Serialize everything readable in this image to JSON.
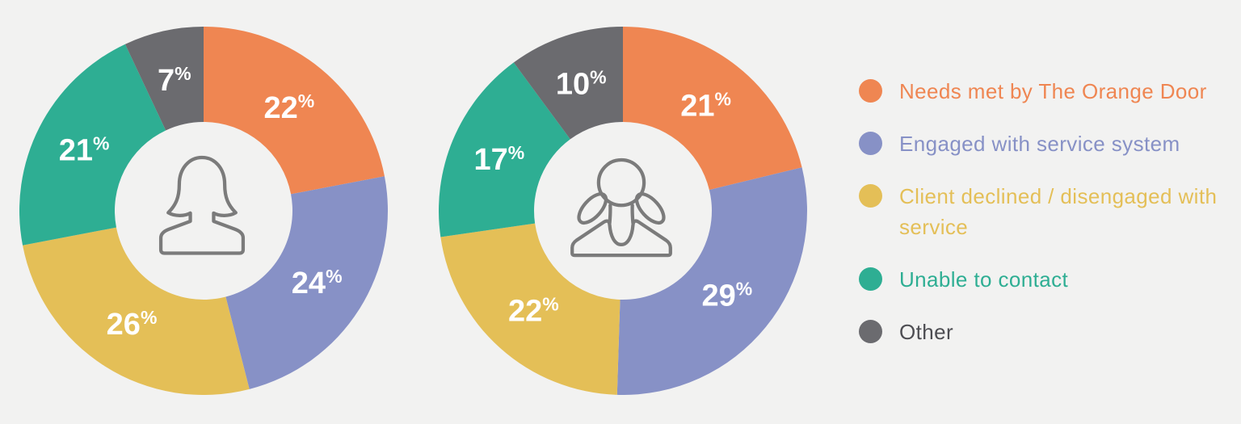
{
  "page": {
    "background_color": "#f2f2f1",
    "value_label_color": "#ffffff",
    "icon_stroke_color": "#7b7b7b"
  },
  "legend": {
    "items": [
      {
        "label": "Needs met by The Orange Door",
        "color": "#ef8652",
        "text_color": "#ef8652",
        "icon": "orange-dot-icon"
      },
      {
        "label": "Engaged with service system",
        "color": "#8791c6",
        "text_color": "#8791c6",
        "icon": "purple-dot-icon"
      },
      {
        "label": "Client declined / disengaged with service",
        "color": "#e4bf57",
        "text_color": "#e4bf57",
        "icon": "yellow-dot-icon"
      },
      {
        "label": "Unable to contact",
        "color": "#2eae93",
        "text_color": "#2eae93",
        "icon": "teal-dot-icon"
      },
      {
        "label": "Other",
        "color": "#6b6b6f",
        "text_color": "#4d4d52",
        "icon": "gray-dot-icon"
      }
    ]
  },
  "chart_data": [
    {
      "type": "pie",
      "subtype": "donut",
      "name": "women-donut",
      "center_icon": "woman-icon",
      "unit": "%",
      "start_angle_deg": 0,
      "direction": "clockwise",
      "categories": [
        "Needs met by The Orange Door",
        "Engaged with service system",
        "Client declined / disengaged with service",
        "Unable to contact",
        "Other"
      ],
      "values": [
        22,
        24,
        26,
        21,
        7
      ],
      "colors": [
        "#ef8652",
        "#8791c6",
        "#e4bf57",
        "#2eae93",
        "#6b6b6f"
      ],
      "value_labels": [
        "22%",
        "24%",
        "26%",
        "21%",
        "7%"
      ]
    },
    {
      "type": "pie",
      "subtype": "donut",
      "name": "children-donut",
      "center_icon": "girl-icon",
      "unit": "%",
      "start_angle_deg": 0,
      "direction": "clockwise",
      "categories": [
        "Needs met by The Orange Door",
        "Engaged with service system",
        "Client declined / disengaged with service",
        "Unable to contact",
        "Other"
      ],
      "values": [
        21,
        29,
        22,
        17,
        10
      ],
      "colors": [
        "#ef8652",
        "#8791c6",
        "#e4bf57",
        "#2eae93",
        "#6b6b6f"
      ],
      "value_labels": [
        "21%",
        "29%",
        "22%",
        "17%",
        "10%"
      ]
    }
  ]
}
